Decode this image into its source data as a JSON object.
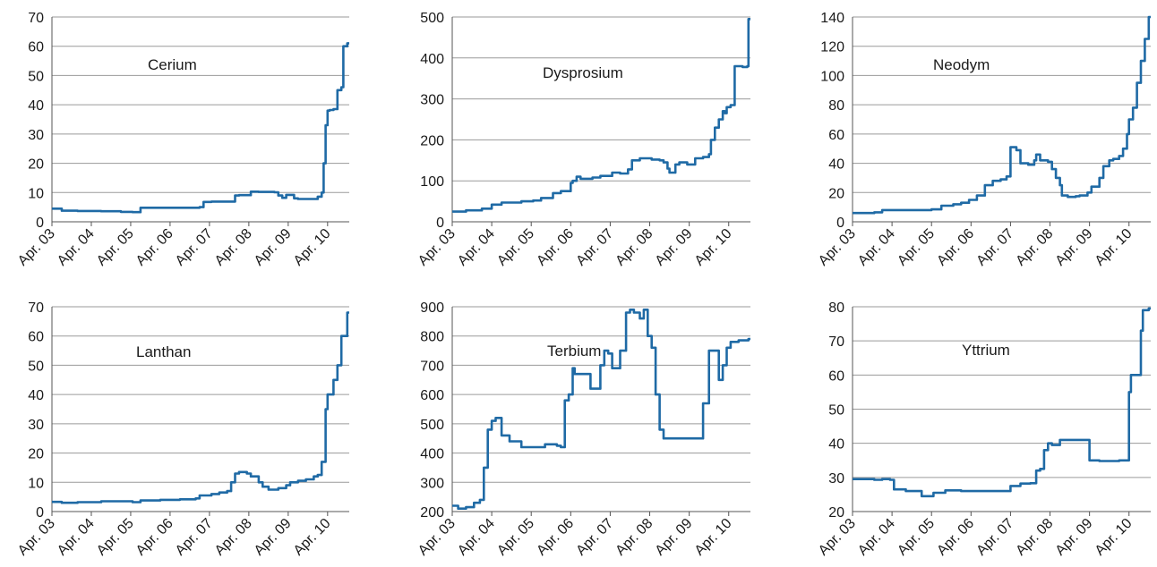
{
  "chart_data": [
    {
      "type": "line",
      "series": [
        {
          "name": "Cerium",
          "x": [
            2003.25,
            2003.5,
            2003.9,
            2004.5,
            2005.0,
            2005.3,
            2005.5,
            2006.0,
            2006.5,
            2007.0,
            2007.1,
            2007.3,
            2007.5,
            2007.9,
            2008.0,
            2008.3,
            2008.5,
            2008.9,
            2009.0,
            2009.1,
            2009.2,
            2009.4,
            2009.5,
            2009.75,
            2010.0,
            2010.1,
            2010.15,
            2010.2,
            2010.25,
            2010.3,
            2010.4,
            2010.5,
            2010.6,
            2010.65,
            2010.7,
            2010.75
          ],
          "y": [
            4.5,
            3.8,
            3.7,
            3.6,
            3.4,
            3.3,
            4.8,
            4.8,
            4.8,
            5.0,
            6.8,
            6.9,
            6.9,
            9.0,
            9.1,
            10.3,
            10.2,
            10.1,
            9.0,
            8.2,
            9.2,
            8.0,
            7.8,
            7.8,
            8.6,
            10.0,
            20.0,
            33.0,
            38.0,
            38.2,
            38.5,
            45.0,
            46.0,
            60.0,
            60.0,
            61.0
          ]
        }
      ],
      "yticks": [
        "0",
        "10",
        "20",
        "30",
        "40",
        "50",
        "60",
        "70"
      ],
      "ylim": [
        0,
        70
      ],
      "xticks": [
        "Apr. 03",
        "Apr. 04",
        "Apr. 05",
        "Apr. 06",
        "Apr. 07",
        "Apr. 08",
        "Apr. 09",
        "Apr. 10"
      ],
      "xlim": [
        2003.25,
        2010.8
      ],
      "annotation": "Cerium",
      "color": "#1f6aa5",
      "grid": "horizontal"
    },
    {
      "type": "line",
      "series": [
        {
          "name": "Dysprosium",
          "x": [
            2003.25,
            2003.6,
            2004.0,
            2004.25,
            2004.5,
            2005.0,
            2005.3,
            2005.5,
            2005.8,
            2006.0,
            2006.25,
            2006.3,
            2006.4,
            2006.5,
            2006.8,
            2007.0,
            2007.3,
            2007.5,
            2007.7,
            2007.8,
            2008.0,
            2008.3,
            2008.5,
            2008.6,
            2008.7,
            2008.75,
            2008.9,
            2009.0,
            2009.2,
            2009.4,
            2009.6,
            2009.75,
            2009.8,
            2009.9,
            2010.0,
            2010.1,
            2010.15,
            2010.2,
            2010.3,
            2010.4,
            2010.5,
            2010.6,
            2010.65,
            2010.72,
            2010.75
          ],
          "y": [
            25,
            28,
            32,
            42,
            47,
            50,
            52,
            58,
            70,
            75,
            95,
            100,
            110,
            105,
            108,
            112,
            120,
            118,
            128,
            150,
            155,
            152,
            150,
            145,
            130,
            120,
            140,
            145,
            140,
            155,
            158,
            165,
            200,
            230,
            250,
            270,
            265,
            280,
            285,
            380,
            380,
            378,
            378,
            380,
            495
          ]
        }
      ],
      "yticks": [
        "0",
        "100",
        "200",
        "300",
        "400",
        "500"
      ],
      "ylim": [
        0,
        500
      ],
      "xticks": [
        "Apr. 03",
        "Apr. 04",
        "Apr. 05",
        "Apr. 06",
        "Apr. 07",
        "Apr. 08",
        "Apr. 09",
        "Apr. 10"
      ],
      "xlim": [
        2003.25,
        2010.8
      ],
      "annotation": "Dysprosium",
      "color": "#1f6aa5",
      "grid": "horizontal"
    },
    {
      "type": "line",
      "series": [
        {
          "name": "Neodym",
          "x": [
            2003.25,
            2003.8,
            2004.0,
            2004.5,
            2005.0,
            2005.25,
            2005.5,
            2005.8,
            2006.0,
            2006.2,
            2006.4,
            2006.6,
            2006.8,
            2007.0,
            2007.15,
            2007.25,
            2007.4,
            2007.5,
            2007.7,
            2007.85,
            2007.9,
            2008.0,
            2008.2,
            2008.3,
            2008.4,
            2008.5,
            2008.55,
            2008.7,
            2008.9,
            2009.0,
            2009.2,
            2009.3,
            2009.5,
            2009.6,
            2009.75,
            2009.85,
            2010.0,
            2010.1,
            2010.2,
            2010.25,
            2010.35,
            2010.45,
            2010.55,
            2010.65,
            2010.75
          ],
          "y": [
            6,
            6.5,
            8,
            8,
            8,
            8.5,
            11,
            12,
            13,
            15,
            18,
            25,
            28,
            29,
            31,
            51,
            49,
            40,
            39,
            42,
            46,
            42,
            41,
            36,
            30,
            25,
            18,
            17,
            17.5,
            18,
            20,
            24,
            30,
            38,
            42,
            43,
            45,
            50,
            60,
            70,
            78,
            95,
            110,
            125,
            140
          ]
        }
      ],
      "yticks": [
        "0",
        "20",
        "40",
        "60",
        "80",
        "100",
        "120",
        "140"
      ],
      "ylim": [
        0,
        140
      ],
      "xticks": [
        "Apr. 03",
        "Apr. 04",
        "Apr. 05",
        "Apr. 06",
        "Apr. 07",
        "Apr. 08",
        "Apr. 09",
        "Apr. 10"
      ],
      "xlim": [
        2003.25,
        2010.8
      ],
      "annotation": "Neodym",
      "color": "#1f6aa5",
      "grid": "horizontal"
    },
    {
      "type": "line",
      "series": [
        {
          "name": "Lanthan",
          "x": [
            2003.25,
            2003.5,
            2003.9,
            2004.5,
            2005.0,
            2005.3,
            2005.5,
            2006.0,
            2006.5,
            2006.9,
            2007.0,
            2007.3,
            2007.5,
            2007.7,
            2007.8,
            2007.9,
            2008.0,
            2008.2,
            2008.3,
            2008.5,
            2008.6,
            2008.75,
            2008.9,
            2009.0,
            2009.2,
            2009.3,
            2009.5,
            2009.7,
            2009.9,
            2010.0,
            2010.1,
            2010.2,
            2010.25,
            2010.3,
            2010.4,
            2010.5,
            2010.6,
            2010.7,
            2010.75
          ],
          "y": [
            3.3,
            3.0,
            3.2,
            3.5,
            3.5,
            3.2,
            3.8,
            4.0,
            4.2,
            4.5,
            5.5,
            6.0,
            6.5,
            7.0,
            10.0,
            13.0,
            13.5,
            13.0,
            12.0,
            10.0,
            8.5,
            7.5,
            7.5,
            8.0,
            9.0,
            10.0,
            10.5,
            11.0,
            12.0,
            12.5,
            17.0,
            35.0,
            40.0,
            40.0,
            45.0,
            50.0,
            60.0,
            60.0,
            68.0
          ]
        }
      ],
      "yticks": [
        "0",
        "10",
        "20",
        "30",
        "40",
        "50",
        "60",
        "70"
      ],
      "ylim": [
        0,
        70
      ],
      "xticks": [
        "Apr. 03",
        "Apr. 04",
        "Apr. 05",
        "Apr. 06",
        "Apr. 07",
        "Apr. 08",
        "Apr. 09",
        "Apr. 10"
      ],
      "xlim": [
        2003.25,
        2010.8
      ],
      "annotation": "Lanthan",
      "color": "#1f6aa5",
      "grid": "horizontal"
    },
    {
      "type": "line",
      "series": [
        {
          "name": "Terbium",
          "x": [
            2003.25,
            2003.4,
            2003.6,
            2003.8,
            2003.95,
            2004.05,
            2004.15,
            2004.25,
            2004.35,
            2004.5,
            2004.7,
            2005.0,
            2005.25,
            2005.4,
            2005.6,
            2005.9,
            2006.0,
            2006.1,
            2006.2,
            2006.3,
            2006.35,
            2006.5,
            2006.75,
            2006.8,
            2007.0,
            2007.1,
            2007.2,
            2007.3,
            2007.35,
            2007.5,
            2007.6,
            2007.65,
            2007.75,
            2007.85,
            2008.0,
            2008.1,
            2008.2,
            2008.3,
            2008.4,
            2008.5,
            2008.6,
            2008.75,
            2009.0,
            2009.2,
            2009.4,
            2009.6,
            2009.75,
            2009.85,
            2010.0,
            2010.1,
            2010.2,
            2010.3,
            2010.5,
            2010.75
          ],
          "y": [
            220,
            210,
            215,
            230,
            240,
            350,
            480,
            510,
            520,
            460,
            440,
            420,
            420,
            420,
            430,
            425,
            420,
            580,
            600,
            690,
            670,
            670,
            620,
            620,
            700,
            750,
            740,
            690,
            690,
            750,
            750,
            880,
            890,
            880,
            860,
            890,
            800,
            760,
            600,
            480,
            450,
            450,
            450,
            450,
            450,
            570,
            750,
            750,
            650,
            700,
            760,
            780,
            785,
            790
          ]
        }
      ],
      "yticks": [
        "200",
        "300",
        "400",
        "500",
        "600",
        "700",
        "800",
        "900"
      ],
      "ylim": [
        200,
        900
      ],
      "xticks": [
        "Apr. 03",
        "Apr. 04",
        "Apr. 05",
        "Apr. 06",
        "Apr. 07",
        "Apr. 08",
        "Apr. 09",
        "Apr. 10"
      ],
      "xlim": [
        2003.25,
        2010.8
      ],
      "annotation": "Terbium",
      "color": "#1f6aa5",
      "grid": "horizontal"
    },
    {
      "type": "line",
      "series": [
        {
          "name": "Yttrium",
          "x": [
            2003.25,
            2003.8,
            2004.0,
            2004.2,
            2004.3,
            2004.6,
            2004.75,
            2004.9,
            2005.0,
            2005.2,
            2005.3,
            2005.6,
            2006.0,
            2006.5,
            2007.0,
            2007.25,
            2007.5,
            2007.75,
            2007.9,
            2008.0,
            2008.1,
            2008.2,
            2008.3,
            2008.5,
            2009.0,
            2009.25,
            2009.5,
            2009.75,
            2010.0,
            2010.25,
            2010.3,
            2010.45,
            2010.55,
            2010.6,
            2010.75
          ],
          "y": [
            29.5,
            29.3,
            29.5,
            29.3,
            26.5,
            26.0,
            26.0,
            26.0,
            24.5,
            24.5,
            25.5,
            26.2,
            26.0,
            26.0,
            26.0,
            27.5,
            28.2,
            28.3,
            32.0,
            32.5,
            38.0,
            40.0,
            39.5,
            41.0,
            41.0,
            35.0,
            34.8,
            34.8,
            35.0,
            55.0,
            60.0,
            60.0,
            73.0,
            79.0,
            79.5
          ]
        }
      ],
      "yticks": [
        "20",
        "30",
        "40",
        "50",
        "60",
        "70",
        "80"
      ],
      "ylim": [
        20,
        80
      ],
      "xticks": [
        "Apr. 03",
        "Apr. 04",
        "Apr. 05",
        "Apr. 06",
        "Apr. 07",
        "Apr. 08",
        "Apr. 09",
        "Apr. 10"
      ],
      "xlim": [
        2003.25,
        2010.8
      ],
      "annotation": "Yttrium",
      "color": "#1f6aa5",
      "grid": "horizontal"
    }
  ]
}
